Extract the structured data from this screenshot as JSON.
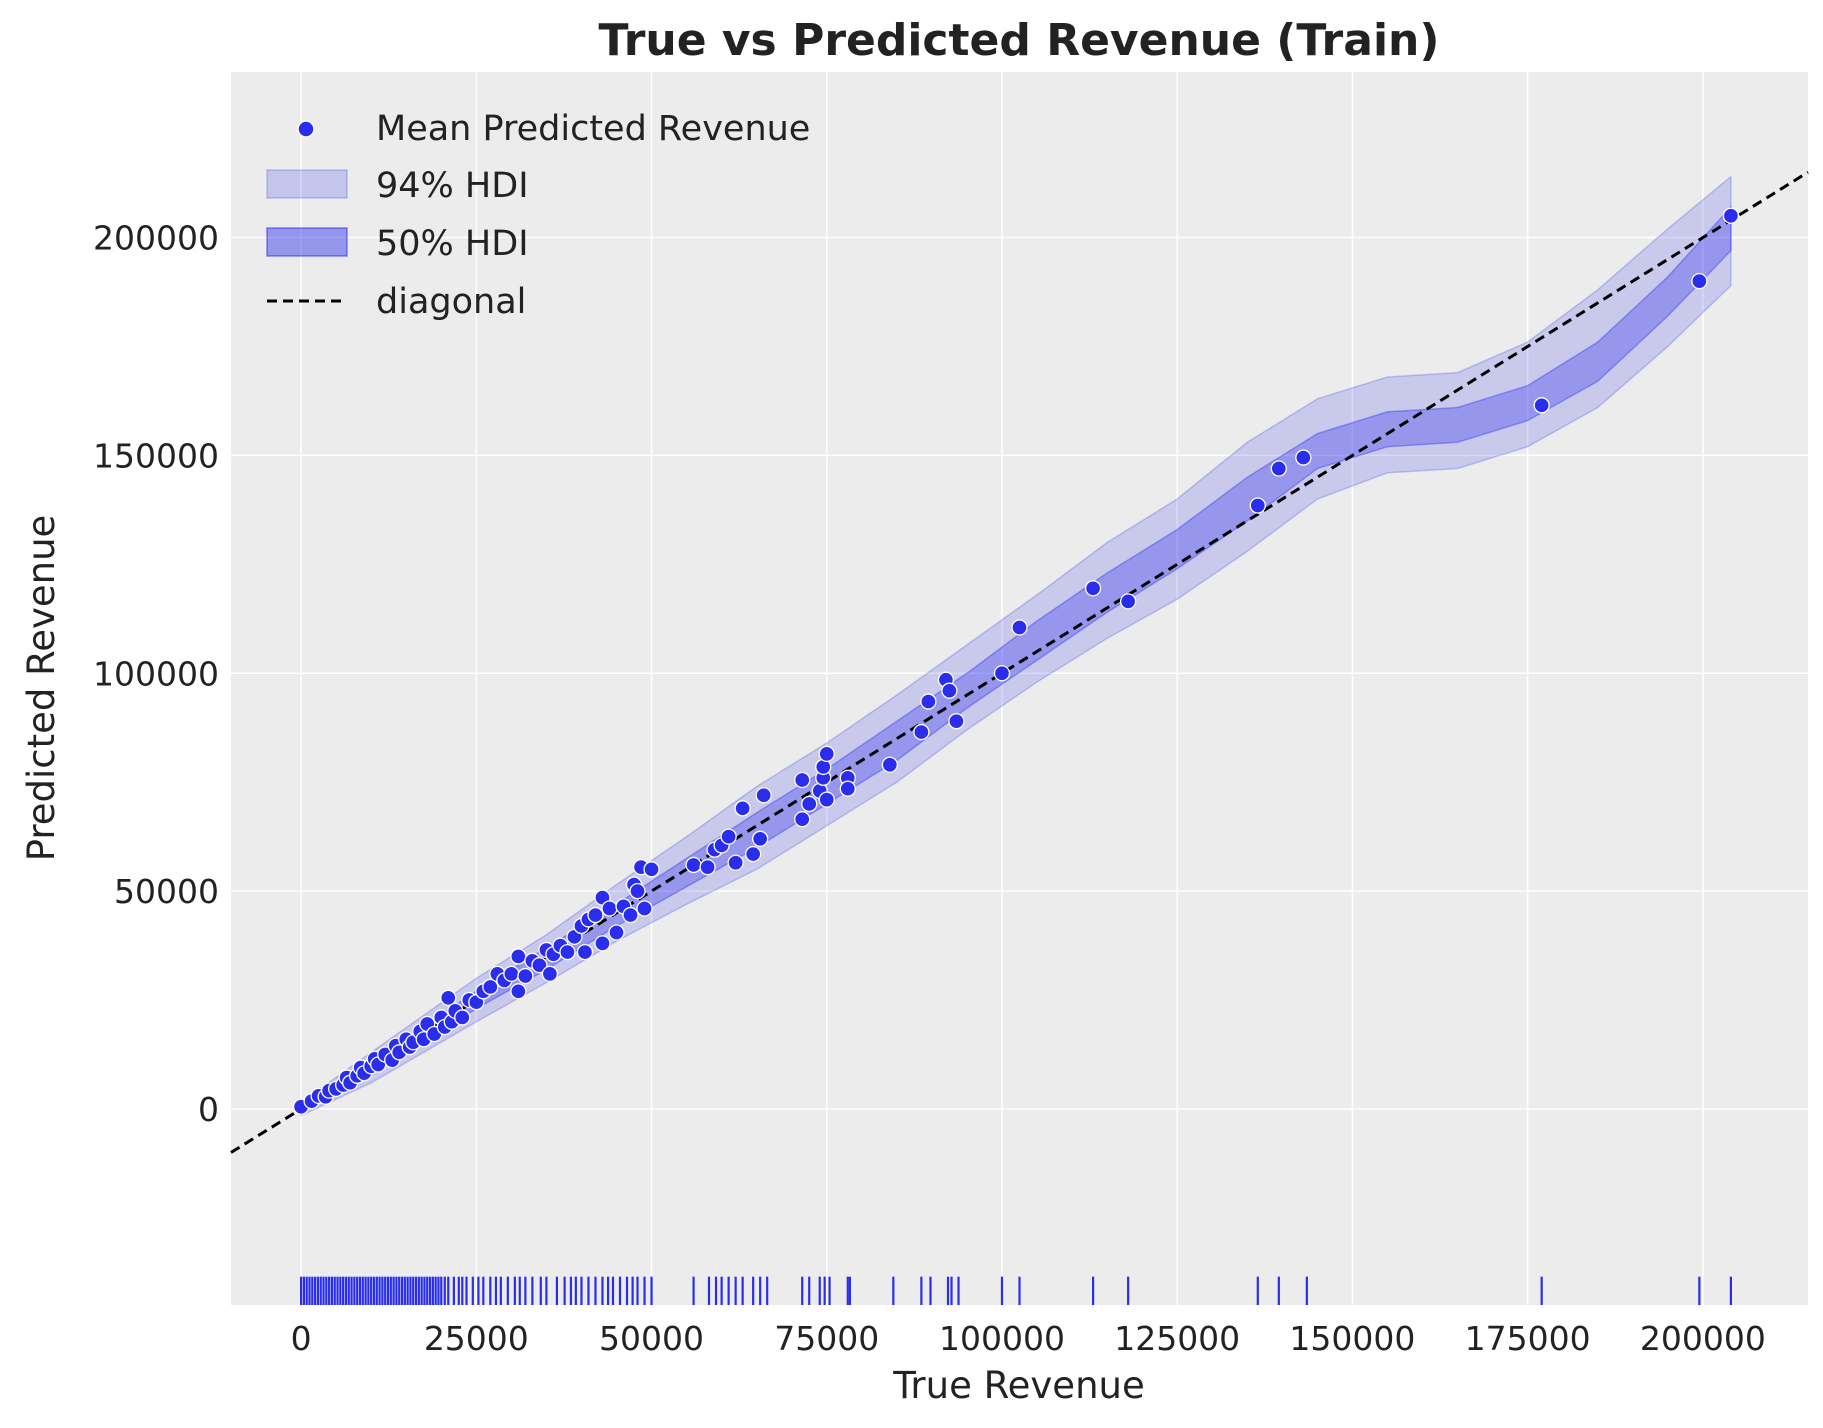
{
  "chart_data": {
    "type": "scatter",
    "title": "True vs Predicted Revenue (Train)",
    "xlabel": "True Revenue",
    "ylabel": "Predicted Revenue",
    "xlim": [
      -10000,
      215000
    ],
    "ylim": [
      -45000,
      238000
    ],
    "xticks": [
      0,
      25000,
      50000,
      75000,
      100000,
      125000,
      150000,
      175000,
      200000
    ],
    "yticks": [
      0,
      50000,
      100000,
      150000,
      200000
    ],
    "xtick_labels": [
      "0",
      "25000",
      "50000",
      "75000",
      "100000",
      "125000",
      "150000",
      "175000",
      "200000"
    ],
    "ytick_labels": [
      "0",
      "50000",
      "100000",
      "150000",
      "200000"
    ],
    "grid": true,
    "legend_position": "top-left",
    "colors": {
      "points": "#2a2eec",
      "hdi94": "#2a2eec",
      "hdi50": "#2a2eec",
      "diagonal": "#000000",
      "background": "#ececec",
      "grid": "#ffffff"
    },
    "legend": [
      {
        "label": "Mean Predicted Revenue",
        "kind": "marker"
      },
      {
        "label": "94% HDI",
        "kind": "band94"
      },
      {
        "label": "50% HDI",
        "kind": "band50"
      },
      {
        "label": "diagonal",
        "kind": "dashed"
      }
    ],
    "series": [
      {
        "name": "Mean Predicted Revenue",
        "points": [
          [
            0,
            500
          ],
          [
            1500,
            1800
          ],
          [
            2500,
            3000
          ],
          [
            3500,
            2800
          ],
          [
            4000,
            4200
          ],
          [
            5000,
            4600
          ],
          [
            6000,
            5500
          ],
          [
            6500,
            7200
          ],
          [
            7000,
            6000
          ],
          [
            8000,
            7600
          ],
          [
            8500,
            9500
          ],
          [
            9000,
            8200
          ],
          [
            10000,
            9800
          ],
          [
            10500,
            11500
          ],
          [
            11000,
            10200
          ],
          [
            12000,
            12500
          ],
          [
            13000,
            11200
          ],
          [
            13500,
            14500
          ],
          [
            14000,
            13000
          ],
          [
            15000,
            16000
          ],
          [
            15500,
            14200
          ],
          [
            16000,
            15300
          ],
          [
            17000,
            17800
          ],
          [
            17500,
            16000
          ],
          [
            18000,
            19500
          ],
          [
            19000,
            17200
          ],
          [
            20000,
            21000
          ],
          [
            20500,
            18800
          ],
          [
            21000,
            25500
          ],
          [
            21500,
            20000
          ],
          [
            22000,
            22500
          ],
          [
            23000,
            21000
          ],
          [
            24000,
            25000
          ],
          [
            25000,
            24500
          ],
          [
            26000,
            27000
          ],
          [
            27000,
            28000
          ],
          [
            28000,
            31000
          ],
          [
            29000,
            29500
          ],
          [
            30000,
            31000
          ],
          [
            31000,
            35000
          ],
          [
            31000,
            27000
          ],
          [
            32000,
            30500
          ],
          [
            33000,
            34000
          ],
          [
            34000,
            33000
          ],
          [
            35000,
            36500
          ],
          [
            35500,
            31000
          ],
          [
            36000,
            35500
          ],
          [
            37000,
            37500
          ],
          [
            38000,
            36000
          ],
          [
            39000,
            39500
          ],
          [
            40000,
            42000
          ],
          [
            40500,
            36000
          ],
          [
            41000,
            43500
          ],
          [
            42000,
            44500
          ],
          [
            43000,
            48500
          ],
          [
            43000,
            38000
          ],
          [
            44000,
            46000
          ],
          [
            45000,
            40500
          ],
          [
            46000,
            46500
          ],
          [
            47000,
            44500
          ],
          [
            47500,
            51500
          ],
          [
            48000,
            50000
          ],
          [
            48500,
            55500
          ],
          [
            49000,
            46000
          ],
          [
            50000,
            55000
          ],
          [
            56000,
            56000
          ],
          [
            58000,
            55500
          ],
          [
            59000,
            59500
          ],
          [
            60000,
            60500
          ],
          [
            61000,
            62500
          ],
          [
            62000,
            56500
          ],
          [
            63000,
            69000
          ],
          [
            64500,
            58500
          ],
          [
            65500,
            62000
          ],
          [
            66000,
            72000
          ],
          [
            71500,
            75500
          ],
          [
            71500,
            66500
          ],
          [
            72500,
            70000
          ],
          [
            74000,
            73000
          ],
          [
            74500,
            76000
          ],
          [
            74500,
            78500
          ],
          [
            75000,
            81500
          ],
          [
            75000,
            71000
          ],
          [
            78000,
            76000
          ],
          [
            78000,
            73500
          ],
          [
            84000,
            79000
          ],
          [
            88500,
            86500
          ],
          [
            89500,
            93500
          ],
          [
            92000,
            98500
          ],
          [
            92500,
            96000
          ],
          [
            93500,
            89000
          ],
          [
            100000,
            100000
          ],
          [
            102500,
            110500
          ],
          [
            113000,
            119500
          ],
          [
            118000,
            116500
          ],
          [
            136500,
            138500
          ],
          [
            139500,
            147000
          ],
          [
            143000,
            149500
          ],
          [
            177000,
            161500
          ],
          [
            199500,
            190000
          ],
          [
            204000,
            205000
          ]
        ]
      }
    ],
    "hdi_94": {
      "x": [
        0,
        10000,
        25000,
        35000,
        45000,
        55000,
        65000,
        75000,
        85000,
        95000,
        105000,
        115000,
        125000,
        135000,
        145000,
        155000,
        165000,
        175000,
        185000,
        195000,
        204000
      ],
      "lower": [
        -1500,
        6000,
        20000,
        29000,
        38500,
        47000,
        55000,
        65000,
        75000,
        87000,
        98000,
        108000,
        117000,
        128000,
        140000,
        146000,
        147000,
        152000,
        161000,
        175000,
        189000
      ],
      "upper": [
        1500,
        13000,
        30000,
        40000,
        51500,
        62500,
        74000,
        84000,
        95000,
        106500,
        118000,
        130000,
        140000,
        153000,
        163000,
        168000,
        169000,
        176000,
        188000,
        202000,
        214000
      ]
    },
    "hdi_50": {
      "x": [
        0,
        10000,
        25000,
        35000,
        45000,
        55000,
        65000,
        75000,
        85000,
        95000,
        105000,
        115000,
        125000,
        135000,
        145000,
        155000,
        165000,
        175000,
        185000,
        195000,
        204000
      ],
      "lower": [
        -500,
        8000,
        23000,
        32000,
        42000,
        51000,
        60000,
        70000,
        80000,
        92000,
        103000,
        114000,
        124000,
        135000,
        147000,
        152000,
        153000,
        158000,
        167000,
        182000,
        197000
      ],
      "upper": [
        500,
        11000,
        27000,
        37000,
        47000,
        57500,
        68000,
        78000,
        89000,
        100000,
        112000,
        123000,
        133000,
        145000,
        155000,
        160000,
        161000,
        166000,
        176000,
        191000,
        207000
      ]
    },
    "rug_x": [
      0,
      400,
      800,
      1200,
      1600,
      2000,
      2400,
      2800,
      3200,
      3600,
      4000,
      4400,
      4800,
      5200,
      5600,
      6000,
      6400,
      6800,
      7200,
      7600,
      8000,
      8400,
      8800,
      9200,
      9600,
      10000,
      10400,
      10800,
      11200,
      11600,
      12000,
      12400,
      12800,
      13200,
      13600,
      14000,
      14400,
      14800,
      15200,
      15600,
      16000,
      16400,
      16800,
      17200,
      17600,
      18000,
      18400,
      18800,
      19200,
      19600,
      20000,
      20500,
      21000,
      21800,
      22500,
      23000,
      23600,
      24500,
      25300,
      26000,
      27000,
      27800,
      28500,
      29500,
      30500,
      31200,
      32000,
      33000,
      34200,
      35000,
      36500,
      37600,
      38500,
      39200,
      40000,
      41000,
      42000,
      43000,
      43800,
      44500,
      45500,
      46500,
      47300,
      48000,
      49000,
      50000,
      56000,
      58200,
      59200,
      60000,
      61000,
      62000,
      63000,
      64500,
      65500,
      66500,
      71500,
      72500,
      74000,
      74700,
      75400,
      78000,
      78300,
      84500,
      88500,
      89800,
      92300,
      92800,
      93800,
      100000,
      102500,
      113000,
      118000,
      136500,
      139500,
      143500,
      177000,
      199500,
      204000
    ],
    "diagonal": {
      "x": [
        -10000,
        215000
      ],
      "y": [
        -10000,
        215000
      ]
    }
  }
}
